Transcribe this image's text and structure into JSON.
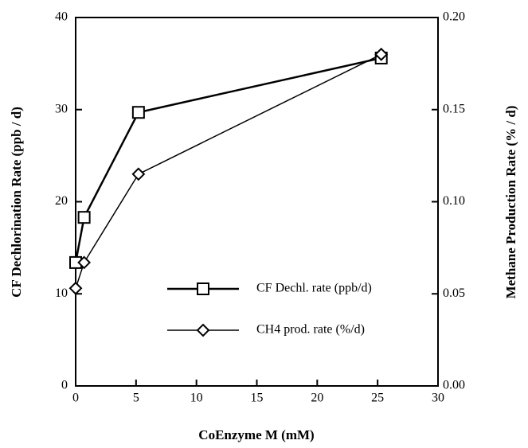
{
  "chart_data": {
    "type": "line",
    "x_label": "CoEnzyme M (mM)",
    "y_label": "CF Dechlorination Rate (ppb / d)",
    "y2_label": "Methane Production Rate (% / d)",
    "xlim": [
      0,
      30
    ],
    "xticks": [
      0,
      5,
      10,
      15,
      20,
      25,
      30
    ],
    "ylim": [
      0,
      40
    ],
    "yticks": [
      0,
      10,
      20,
      30,
      40
    ],
    "y2lim": [
      0,
      0.2
    ],
    "y2ticks": [
      {
        "value": 0,
        "label": "0.00"
      },
      {
        "value": 0.05,
        "label": "0.05"
      },
      {
        "value": 0.1,
        "label": "0.10"
      },
      {
        "value": 0.15,
        "label": "0.15"
      },
      {
        "value": 0.2,
        "label": "0.20"
      }
    ],
    "series": [
      {
        "name": "CF Dechl. rate (ppb/d)",
        "marker": "square",
        "color": "#000000",
        "x": [
          0,
          0.7,
          5.2,
          25.3
        ],
        "values": [
          13.4,
          18.3,
          29.7,
          35.6
        ]
      },
      {
        "name": "CH4 prod. rate (%/d)",
        "marker": "diamond",
        "axis": "y2",
        "color": "#000000",
        "x": [
          0,
          0.7,
          5.2,
          25.3
        ],
        "values": [
          0.053,
          0.067,
          0.115,
          0.18
        ]
      }
    ]
  }
}
